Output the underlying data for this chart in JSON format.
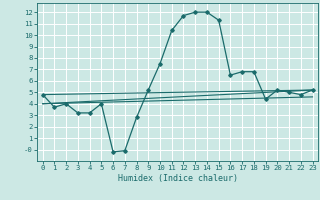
{
  "xlabel": "Humidex (Indice chaleur)",
  "background_color": "#cce8e4",
  "grid_color": "#ffffff",
  "line_color": "#1a6b6b",
  "xlim": [
    -0.5,
    23.5
  ],
  "ylim": [
    -1.0,
    12.8
  ],
  "xticks": [
    0,
    1,
    2,
    3,
    4,
    5,
    6,
    7,
    8,
    9,
    10,
    11,
    12,
    13,
    14,
    15,
    16,
    17,
    18,
    19,
    20,
    21,
    22,
    23
  ],
  "yticks": [
    0,
    1,
    2,
    3,
    4,
    5,
    6,
    7,
    8,
    9,
    10,
    11,
    12
  ],
  "ytick_labels": [
    "-0",
    "1",
    "2",
    "3",
    "4",
    "5",
    "6",
    "7",
    "8",
    "9",
    "10",
    "11",
    "12"
  ],
  "main_line": {
    "x": [
      0,
      1,
      2,
      3,
      4,
      5,
      6,
      7,
      8,
      9,
      10,
      11,
      12,
      13,
      14,
      15,
      16,
      17,
      18,
      19,
      20,
      21,
      22,
      23
    ],
    "y": [
      4.8,
      3.7,
      4.0,
      3.2,
      3.2,
      4.0,
      -0.2,
      -0.1,
      2.8,
      5.2,
      7.5,
      10.4,
      11.7,
      12.0,
      12.0,
      11.3,
      6.5,
      6.8,
      6.8,
      4.4,
      5.2,
      5.0,
      4.8,
      5.2
    ]
  },
  "straight_lines": [
    {
      "x": [
        0,
        23
      ],
      "y": [
        4.8,
        5.2
      ]
    },
    {
      "x": [
        0,
        23
      ],
      "y": [
        4.0,
        4.6
      ]
    },
    {
      "x": [
        0,
        23
      ],
      "y": [
        4.0,
        5.2
      ]
    }
  ]
}
